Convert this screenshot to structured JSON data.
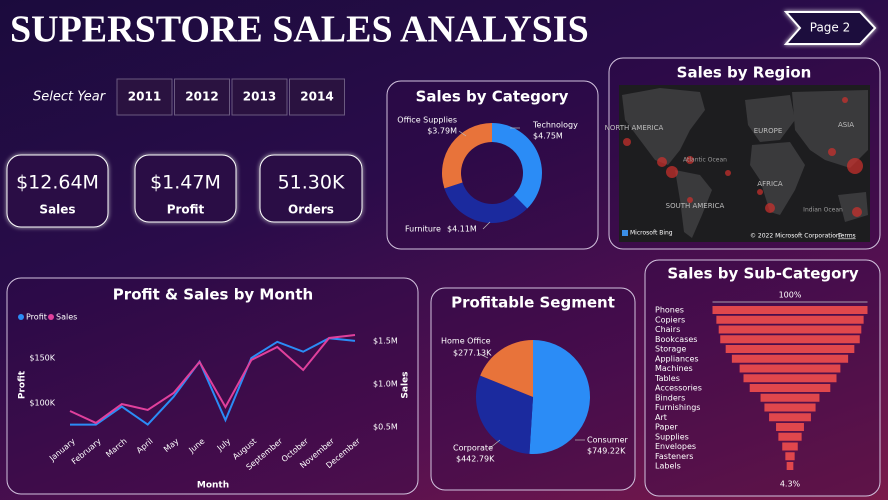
{
  "header": {
    "title": "SUPERSTORE SALES ANALYSIS",
    "button": "Page 2"
  },
  "slicer": {
    "label": "Select Year",
    "options": [
      "2011",
      "2012",
      "2013",
      "2014"
    ]
  },
  "kpis": [
    {
      "value": "$12.64M",
      "label": "Sales"
    },
    {
      "value": "$1.47M",
      "label": "Profit"
    },
    {
      "value": "51.30K",
      "label": "Orders"
    }
  ],
  "region_map": {
    "title": "Sales by Region",
    "labels": [
      "NORTH AMERICA",
      "EUROPE",
      "ASIA",
      "AFRICA",
      "SOUTH AMERICA",
      "Atlantic Ocean",
      "Indian Ocean"
    ],
    "provider": "Microsoft Bing",
    "copyright": "© 2022 Microsoft Corporation",
    "terms": "Terms"
  },
  "chart_data": [
    {
      "type": "donut",
      "title": "Sales by Category",
      "categories": [
        "Technology",
        "Furniture",
        "Office Supplies"
      ],
      "values": [
        4.75,
        4.11,
        3.79
      ],
      "value_labels": [
        "$4.75M",
        "$4.11M",
        "$3.79M"
      ],
      "colors": [
        "#2b8cf6",
        "#1b2a9e",
        "#e8733a"
      ]
    },
    {
      "type": "line",
      "title": "Profit & Sales by Month",
      "categories": [
        "January",
        "February",
        "March",
        "April",
        "May",
        "June",
        "July",
        "August",
        "September",
        "October",
        "November",
        "December"
      ],
      "series": [
        {
          "name": "Profit",
          "color": "#2b8cf6",
          "values": [
            76000,
            76000,
            96000,
            76000,
            107000,
            146000,
            81000,
            150000,
            168000,
            157000,
            172000,
            169000
          ]
        },
        {
          "name": "Sales",
          "color": "#e0409c",
          "axis": "y2",
          "values": [
            686000,
            547000,
            767000,
            698000,
            895000,
            1256000,
            733000,
            1279000,
            1430000,
            1163000,
            1535000,
            1570000
          ]
        }
      ],
      "ylim": [
        70000,
        180000
      ],
      "yticks": [
        {
          "value": 100000,
          "label": "$100K"
        },
        {
          "value": 150000,
          "label": "$150K"
        }
      ],
      "y2lim": [
        465000,
        1616000
      ],
      "y2ticks": [
        {
          "value": 500000,
          "label": "$0.5M"
        },
        {
          "value": 1000000,
          "label": "$1.0M"
        },
        {
          "value": 1500000,
          "label": "$1.5M"
        }
      ],
      "xlabel": "Month",
      "ylabel": "Profit",
      "y2label": "Sales",
      "legend": "top-left"
    },
    {
      "type": "pie",
      "title": "Profitable Segment",
      "categories": [
        "Consumer",
        "Corporate",
        "Home Office"
      ],
      "values": [
        749.22,
        442.79,
        277.13
      ],
      "value_labels": [
        "$749.22K",
        "$442.79K",
        "$277.13K"
      ],
      "colors": [
        "#2b8cf6",
        "#1b2a9e",
        "#e8733a"
      ]
    },
    {
      "type": "funnel",
      "title": "Sales by Sub-Category",
      "categories": [
        "Phones",
        "Copiers",
        "Chairs",
        "Bookcases",
        "Storage",
        "Appliances",
        "Machines",
        "Tables",
        "Accessories",
        "Binders",
        "Furnishings",
        "Art",
        "Paper",
        "Supplies",
        "Envelopes",
        "Fasteners",
        "Labels"
      ],
      "values": [
        100,
        95,
        92,
        90,
        83,
        75,
        65,
        60,
        52,
        38,
        33,
        27,
        18,
        15,
        10,
        6,
        4.3
      ],
      "value_labels": [
        "100%",
        null,
        null,
        null,
        null,
        null,
        null,
        null,
        null,
        null,
        null,
        null,
        null,
        null,
        null,
        null,
        "4.3%"
      ],
      "color": "#e0474c"
    }
  ]
}
